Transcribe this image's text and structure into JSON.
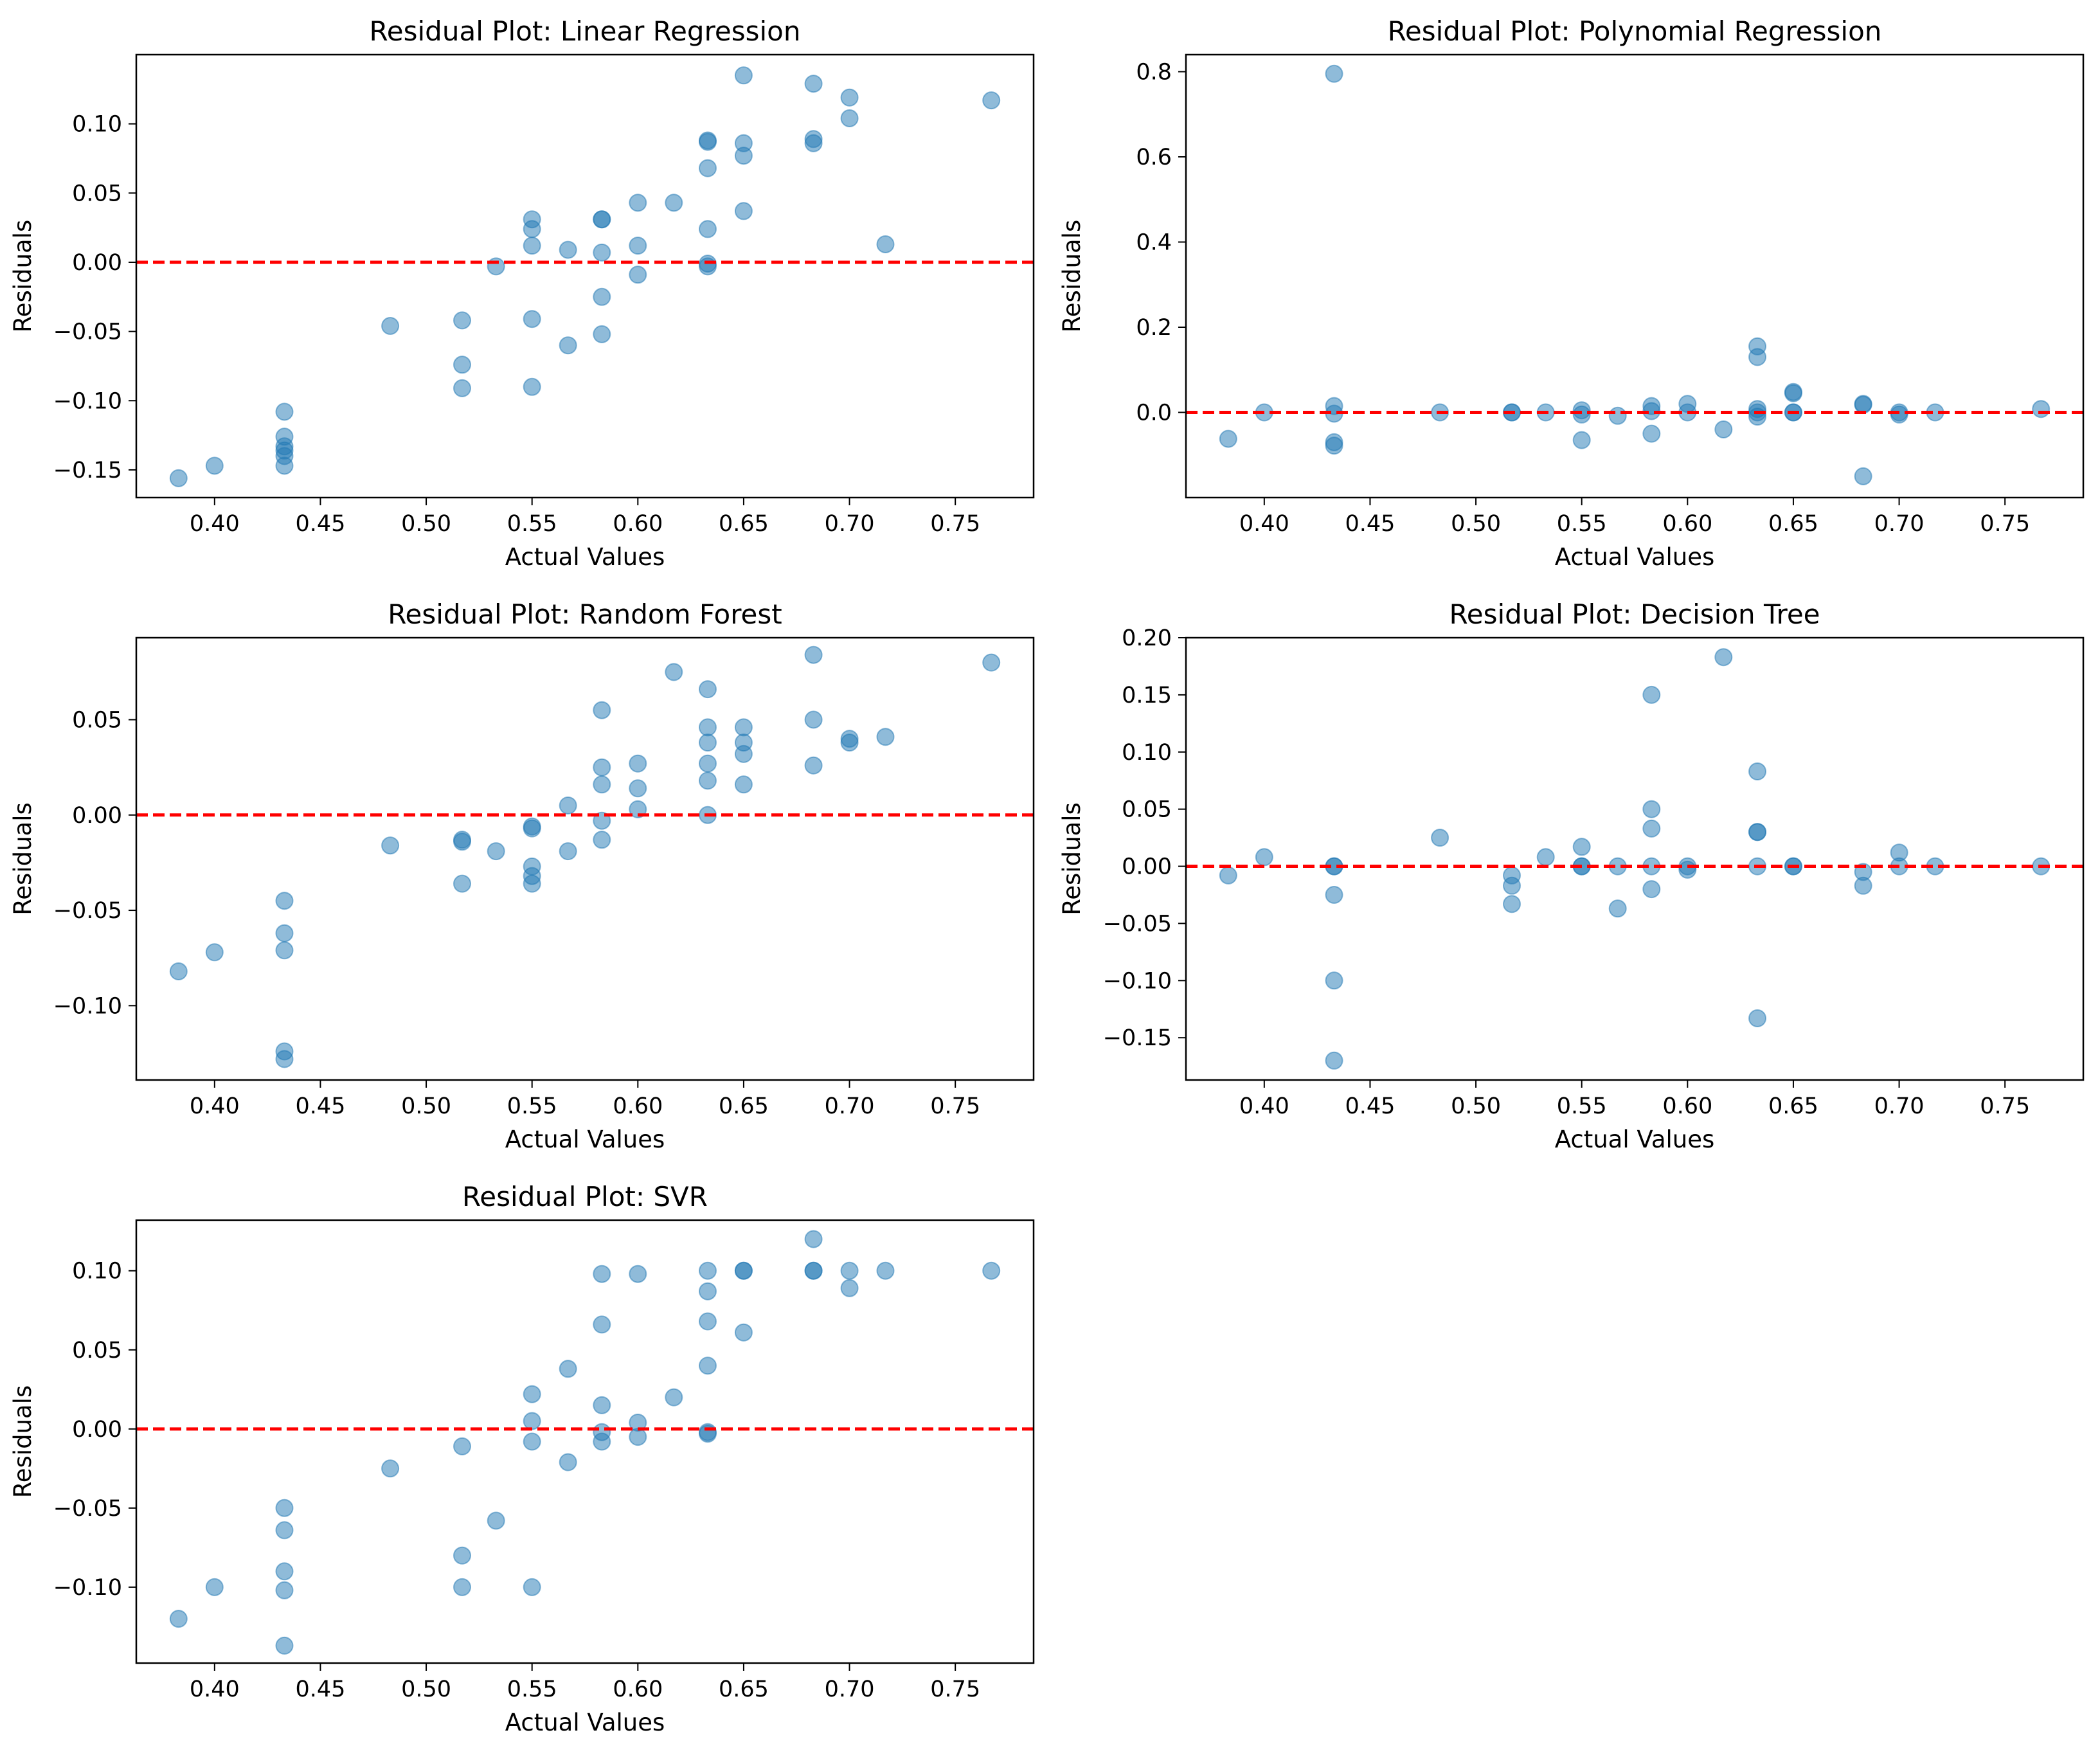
{
  "chart_data": [
    {
      "type": "scatter",
      "title": "Residual Plot: Linear Regression",
      "xlabel": "Actual Values",
      "ylabel": "Residuals",
      "xlim": [
        0.363,
        0.787
      ],
      "ylim": [
        -0.17,
        0.15
      ],
      "xticks": [
        0.4,
        0.45,
        0.5,
        0.55,
        0.6,
        0.65,
        0.7,
        0.75
      ],
      "xtick_labels": [
        "0.40",
        "0.45",
        "0.50",
        "0.55",
        "0.60",
        "0.65",
        "0.70",
        "0.75"
      ],
      "yticks": [
        -0.15,
        -0.1,
        -0.05,
        0.0,
        0.05,
        0.1
      ],
      "ytick_labels": [
        "−0.15",
        "−0.10",
        "−0.05",
        "0.00",
        "0.05",
        "0.10"
      ],
      "reference_line": 0,
      "points": [
        [
          0.383,
          -0.156
        ],
        [
          0.4,
          -0.147
        ],
        [
          0.433,
          -0.108
        ],
        [
          0.433,
          -0.126
        ],
        [
          0.433,
          -0.133
        ],
        [
          0.433,
          -0.136
        ],
        [
          0.433,
          -0.14
        ],
        [
          0.433,
          -0.147
        ],
        [
          0.483,
          -0.046
        ],
        [
          0.517,
          -0.042
        ],
        [
          0.517,
          -0.074
        ],
        [
          0.517,
          -0.091
        ],
        [
          0.533,
          -0.003
        ],
        [
          0.55,
          0.031
        ],
        [
          0.55,
          0.024
        ],
        [
          0.55,
          0.012
        ],
        [
          0.55,
          -0.041
        ],
        [
          0.55,
          -0.09
        ],
        [
          0.567,
          0.009
        ],
        [
          0.567,
          -0.06
        ],
        [
          0.583,
          0.031
        ],
        [
          0.583,
          0.031
        ],
        [
          0.583,
          0.007
        ],
        [
          0.583,
          -0.025
        ],
        [
          0.583,
          -0.052
        ],
        [
          0.6,
          0.043
        ],
        [
          0.6,
          0.012
        ],
        [
          0.6,
          -0.009
        ],
        [
          0.617,
          0.043
        ],
        [
          0.633,
          0.088
        ],
        [
          0.633,
          0.087
        ],
        [
          0.633,
          0.068
        ],
        [
          0.633,
          0.024
        ],
        [
          0.633,
          -0.001
        ],
        [
          0.633,
          -0.003
        ],
        [
          0.65,
          0.135
        ],
        [
          0.65,
          0.086
        ],
        [
          0.65,
          0.077
        ],
        [
          0.65,
          0.037
        ],
        [
          0.683,
          0.129
        ],
        [
          0.683,
          0.089
        ],
        [
          0.683,
          0.086
        ],
        [
          0.7,
          0.119
        ],
        [
          0.7,
          0.104
        ],
        [
          0.717,
          0.013
        ],
        [
          0.767,
          0.117
        ]
      ]
    },
    {
      "type": "scatter",
      "title": "Residual Plot: Polynomial Regression",
      "xlabel": "Actual Values",
      "ylabel": "Residuals",
      "xlim": [
        0.363,
        0.787
      ],
      "ylim": [
        -0.2,
        0.84
      ],
      "xticks": [
        0.4,
        0.45,
        0.5,
        0.55,
        0.6,
        0.65,
        0.7,
        0.75
      ],
      "xtick_labels": [
        "0.40",
        "0.45",
        "0.50",
        "0.55",
        "0.60",
        "0.65",
        "0.70",
        "0.75"
      ],
      "yticks": [
        0.0,
        0.2,
        0.4,
        0.6,
        0.8
      ],
      "ytick_labels": [
        "0.0",
        "0.2",
        "0.4",
        "0.6",
        "0.8"
      ],
      "reference_line": 0,
      "points": [
        [
          0.383,
          -0.062
        ],
        [
          0.4,
          0.0
        ],
        [
          0.433,
          0.795
        ],
        [
          0.433,
          0.015
        ],
        [
          0.433,
          -0.003
        ],
        [
          0.433,
          -0.07
        ],
        [
          0.433,
          -0.078
        ],
        [
          0.483,
          0.0
        ],
        [
          0.517,
          0.0
        ],
        [
          0.517,
          0.0
        ],
        [
          0.533,
          0.0
        ],
        [
          0.55,
          0.005
        ],
        [
          0.55,
          -0.005
        ],
        [
          0.55,
          -0.065
        ],
        [
          0.567,
          -0.008
        ],
        [
          0.583,
          0.015
        ],
        [
          0.583,
          0.003
        ],
        [
          0.583,
          -0.05
        ],
        [
          0.6,
          0.02
        ],
        [
          0.6,
          0.0
        ],
        [
          0.617,
          -0.04
        ],
        [
          0.633,
          0.155
        ],
        [
          0.633,
          0.13
        ],
        [
          0.633,
          0.008
        ],
        [
          0.633,
          0.0
        ],
        [
          0.633,
          -0.01
        ],
        [
          0.65,
          0.048
        ],
        [
          0.65,
          0.045
        ],
        [
          0.65,
          0.0
        ],
        [
          0.65,
          0.0
        ],
        [
          0.683,
          0.02
        ],
        [
          0.683,
          0.018
        ],
        [
          0.683,
          -0.15
        ],
        [
          0.7,
          0.0
        ],
        [
          0.7,
          -0.005
        ],
        [
          0.717,
          0.0
        ],
        [
          0.767,
          0.008
        ]
      ]
    },
    {
      "type": "scatter",
      "title": "Residual Plot: Random Forest",
      "xlabel": "Actual Values",
      "ylabel": "Residuals",
      "xlim": [
        0.363,
        0.787
      ],
      "ylim": [
        -0.139,
        0.093
      ],
      "xticks": [
        0.4,
        0.45,
        0.5,
        0.55,
        0.6,
        0.65,
        0.7,
        0.75
      ],
      "xtick_labels": [
        "0.40",
        "0.45",
        "0.50",
        "0.55",
        "0.60",
        "0.65",
        "0.70",
        "0.75"
      ],
      "yticks": [
        -0.1,
        -0.05,
        0.0,
        0.05
      ],
      "ytick_labels": [
        "−0.10",
        "−0.05",
        "0.00",
        "0.05"
      ],
      "reference_line": 0,
      "points": [
        [
          0.383,
          -0.082
        ],
        [
          0.4,
          -0.072
        ],
        [
          0.433,
          -0.045
        ],
        [
          0.433,
          -0.062
        ],
        [
          0.433,
          -0.071
        ],
        [
          0.433,
          -0.124
        ],
        [
          0.433,
          -0.128
        ],
        [
          0.483,
          -0.016
        ],
        [
          0.517,
          -0.013
        ],
        [
          0.517,
          -0.014
        ],
        [
          0.517,
          -0.036
        ],
        [
          0.533,
          -0.019
        ],
        [
          0.55,
          -0.006
        ],
        [
          0.55,
          -0.007
        ],
        [
          0.55,
          -0.027
        ],
        [
          0.55,
          -0.032
        ],
        [
          0.55,
          -0.036
        ],
        [
          0.567,
          0.005
        ],
        [
          0.567,
          -0.019
        ],
        [
          0.583,
          0.055
        ],
        [
          0.583,
          0.025
        ],
        [
          0.583,
          0.016
        ],
        [
          0.583,
          -0.003
        ],
        [
          0.583,
          -0.013
        ],
        [
          0.6,
          0.027
        ],
        [
          0.6,
          0.014
        ],
        [
          0.6,
          0.003
        ],
        [
          0.617,
          0.075
        ],
        [
          0.633,
          0.066
        ],
        [
          0.633,
          0.046
        ],
        [
          0.633,
          0.038
        ],
        [
          0.633,
          0.027
        ],
        [
          0.633,
          0.018
        ],
        [
          0.633,
          0.0
        ],
        [
          0.65,
          0.046
        ],
        [
          0.65,
          0.038
        ],
        [
          0.65,
          0.032
        ],
        [
          0.65,
          0.016
        ],
        [
          0.683,
          0.084
        ],
        [
          0.683,
          0.05
        ],
        [
          0.683,
          0.026
        ],
        [
          0.7,
          0.04
        ],
        [
          0.7,
          0.038
        ],
        [
          0.717,
          0.041
        ],
        [
          0.767,
          0.08
        ]
      ]
    },
    {
      "type": "scatter",
      "title": "Residual Plot: Decision Tree",
      "xlabel": "Actual Values",
      "ylabel": "Residuals",
      "xlim": [
        0.363,
        0.787
      ],
      "ylim": [
        -0.187,
        0.2
      ],
      "xticks": [
        0.4,
        0.45,
        0.5,
        0.55,
        0.6,
        0.65,
        0.7,
        0.75
      ],
      "xtick_labels": [
        "0.40",
        "0.45",
        "0.50",
        "0.55",
        "0.60",
        "0.65",
        "0.70",
        "0.75"
      ],
      "yticks": [
        -0.15,
        -0.1,
        -0.05,
        0.0,
        0.05,
        0.1,
        0.15,
        0.2
      ],
      "ytick_labels": [
        "−0.15",
        "−0.10",
        "−0.05",
        "0.00",
        "0.05",
        "0.10",
        "0.15",
        "0.20"
      ],
      "reference_line": 0,
      "points": [
        [
          0.383,
          -0.008
        ],
        [
          0.4,
          0.008
        ],
        [
          0.433,
          0.0
        ],
        [
          0.433,
          0.0
        ],
        [
          0.433,
          -0.025
        ],
        [
          0.433,
          -0.1
        ],
        [
          0.433,
          -0.17
        ],
        [
          0.483,
          0.025
        ],
        [
          0.517,
          -0.008
        ],
        [
          0.517,
          -0.017
        ],
        [
          0.517,
          -0.033
        ],
        [
          0.533,
          0.008
        ],
        [
          0.55,
          0.017
        ],
        [
          0.55,
          0.0
        ],
        [
          0.55,
          0.0
        ],
        [
          0.567,
          0.0
        ],
        [
          0.567,
          -0.037
        ],
        [
          0.583,
          0.15
        ],
        [
          0.583,
          0.05
        ],
        [
          0.583,
          0.033
        ],
        [
          0.583,
          0.0
        ],
        [
          0.583,
          -0.02
        ],
        [
          0.6,
          0.0
        ],
        [
          0.6,
          -0.003
        ],
        [
          0.617,
          0.183
        ],
        [
          0.633,
          0.083
        ],
        [
          0.633,
          0.03
        ],
        [
          0.633,
          0.03
        ],
        [
          0.633,
          0.0
        ],
        [
          0.633,
          -0.133
        ],
        [
          0.65,
          0.0
        ],
        [
          0.65,
          0.0
        ],
        [
          0.683,
          -0.005
        ],
        [
          0.683,
          -0.017
        ],
        [
          0.7,
          0.012
        ],
        [
          0.7,
          0.0
        ],
        [
          0.717,
          0.0
        ],
        [
          0.767,
          0.0
        ]
      ]
    },
    {
      "type": "scatter",
      "title": "Residual Plot: SVR",
      "xlabel": "Actual Values",
      "ylabel": "Residuals",
      "xlim": [
        0.363,
        0.787
      ],
      "ylim": [
        -0.148,
        0.132
      ],
      "xticks": [
        0.4,
        0.45,
        0.5,
        0.55,
        0.6,
        0.65,
        0.7,
        0.75
      ],
      "xtick_labels": [
        "0.40",
        "0.45",
        "0.50",
        "0.55",
        "0.60",
        "0.65",
        "0.70",
        "0.75"
      ],
      "yticks": [
        -0.1,
        -0.05,
        0.0,
        0.05,
        0.1
      ],
      "ytick_labels": [
        "−0.10",
        "−0.05",
        "0.00",
        "0.05",
        "0.10"
      ],
      "reference_line": 0,
      "points": [
        [
          0.383,
          -0.12
        ],
        [
          0.4,
          -0.1
        ],
        [
          0.433,
          -0.05
        ],
        [
          0.433,
          -0.064
        ],
        [
          0.433,
          -0.09
        ],
        [
          0.433,
          -0.102
        ],
        [
          0.433,
          -0.137
        ],
        [
          0.483,
          -0.025
        ],
        [
          0.517,
          -0.011
        ],
        [
          0.517,
          -0.08
        ],
        [
          0.517,
          -0.1
        ],
        [
          0.533,
          -0.058
        ],
        [
          0.55,
          0.022
        ],
        [
          0.55,
          0.005
        ],
        [
          0.55,
          -0.008
        ],
        [
          0.55,
          -0.1
        ],
        [
          0.567,
          0.038
        ],
        [
          0.567,
          -0.021
        ],
        [
          0.583,
          0.098
        ],
        [
          0.583,
          0.066
        ],
        [
          0.583,
          0.015
        ],
        [
          0.583,
          -0.002
        ],
        [
          0.583,
          -0.008
        ],
        [
          0.6,
          0.098
        ],
        [
          0.6,
          0.004
        ],
        [
          0.6,
          -0.005
        ],
        [
          0.617,
          0.02
        ],
        [
          0.633,
          0.1
        ],
        [
          0.633,
          0.087
        ],
        [
          0.633,
          0.068
        ],
        [
          0.633,
          0.04
        ],
        [
          0.633,
          -0.002
        ],
        [
          0.633,
          -0.003
        ],
        [
          0.65,
          0.1
        ],
        [
          0.65,
          0.1
        ],
        [
          0.65,
          0.061
        ],
        [
          0.683,
          0.12
        ],
        [
          0.683,
          0.1
        ],
        [
          0.683,
          0.1
        ],
        [
          0.7,
          0.1
        ],
        [
          0.7,
          0.089
        ],
        [
          0.717,
          0.1
        ],
        [
          0.767,
          0.1
        ]
      ]
    }
  ],
  "colors": {
    "marker_fill": "#1f77b4",
    "reference_line": "#ff0000",
    "axes": "#000000",
    "background": "#ffffff"
  }
}
